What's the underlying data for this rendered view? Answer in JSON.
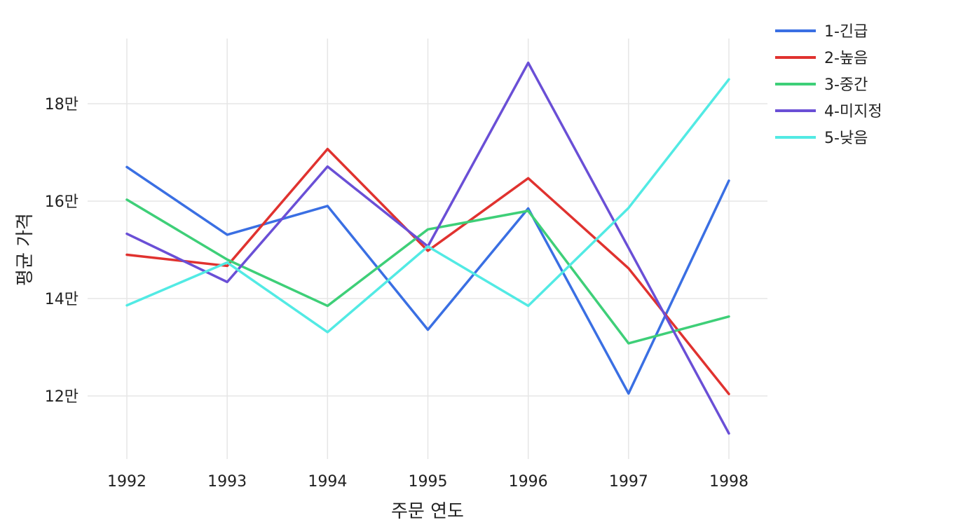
{
  "chart_data": {
    "type": "line",
    "title": "",
    "xlabel": "주문 연도",
    "ylabel": "평균 가격",
    "x": [
      "1992",
      "1993",
      "1994",
      "1995",
      "1996",
      "1997",
      "1998"
    ],
    "y_ticks": [
      120000,
      140000,
      160000,
      180000
    ],
    "y_tick_labels": [
      "12만",
      "14만",
      "16만",
      "18만"
    ],
    "ylim": [
      108000,
      193000
    ],
    "grid": true,
    "legend_position": "right",
    "series": [
      {
        "name": "1-긴급",
        "color": "#3a6fe3",
        "values": [
          167000,
          153100,
          159000,
          133600,
          158500,
          120500,
          164200
        ]
      },
      {
        "name": "2-높음",
        "color": "#e0322f",
        "values": [
          149000,
          146700,
          170700,
          149800,
          164700,
          146200,
          120400
        ]
      },
      {
        "name": "3-중간",
        "color": "#3ecf78",
        "values": [
          160300,
          148000,
          138500,
          154200,
          158000,
          130800,
          136300
        ]
      },
      {
        "name": "4-미지정",
        "color": "#6a4fd6",
        "values": [
          153300,
          143400,
          167100,
          150700,
          188400,
          150400,
          112300
        ]
      },
      {
        "name": "5-낮음",
        "color": "#52eae4",
        "values": [
          138600,
          147400,
          133100,
          150700,
          138500,
          158600,
          185000
        ]
      }
    ]
  }
}
